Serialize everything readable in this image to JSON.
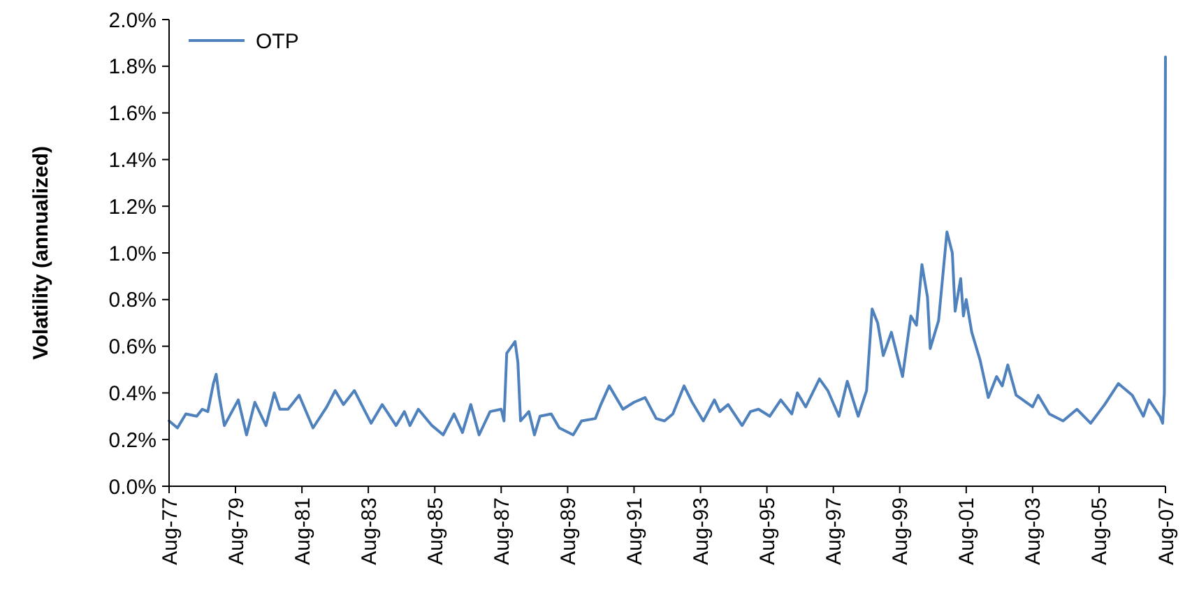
{
  "chart_data": {
    "type": "line",
    "ylabel": "Volatility (annualized)",
    "legend": "top left",
    "grid": false,
    "marker": "none",
    "line_style": "solid",
    "xlim": [
      "1977-08",
      "2007-08"
    ],
    "xticks": [
      {
        "value": "1977-08",
        "label": "Aug-77"
      },
      {
        "value": "1979-08",
        "label": "Aug-79"
      },
      {
        "value": "1981-08",
        "label": "Aug-81"
      },
      {
        "value": "1983-08",
        "label": "Aug-83"
      },
      {
        "value": "1985-08",
        "label": "Aug-85"
      },
      {
        "value": "1987-08",
        "label": "Aug-87"
      },
      {
        "value": "1989-08",
        "label": "Aug-89"
      },
      {
        "value": "1991-08",
        "label": "Aug-91"
      },
      {
        "value": "1993-08",
        "label": "Aug-93"
      },
      {
        "value": "1995-08",
        "label": "Aug-95"
      },
      {
        "value": "1997-08",
        "label": "Aug-97"
      },
      {
        "value": "1999-08",
        "label": "Aug-99"
      },
      {
        "value": "2001-08",
        "label": "Aug-01"
      },
      {
        "value": "2003-08",
        "label": "Aug-03"
      },
      {
        "value": "2005-08",
        "label": "Aug-05"
      },
      {
        "value": "2007-08",
        "label": "Aug-07"
      }
    ],
    "ylim": [
      0,
      2.0
    ],
    "yticks": [
      {
        "value": 0,
        "label": "0.0%"
      },
      {
        "value": 0.2,
        "label": "0.2%"
      },
      {
        "value": 0.4,
        "label": "0.4%"
      },
      {
        "value": 0.6,
        "label": "0.6%"
      },
      {
        "value": 0.8,
        "label": "0.8%"
      },
      {
        "value": 1.0,
        "label": "1.0%"
      },
      {
        "value": 1.2,
        "label": "1.2%"
      },
      {
        "value": 1.4,
        "label": "1.4%"
      },
      {
        "value": 1.6,
        "label": "1.6%"
      },
      {
        "value": 1.8,
        "label": "1.8%"
      },
      {
        "value": 2.0,
        "label": "2.0%"
      }
    ],
    "x": [
      "1977-08",
      "1977-11",
      "1978-02",
      "1978-06",
      "1978-08",
      "1978-10",
      "1978-12",
      "1979-01",
      "1979-02",
      "1979-04",
      "1979-09",
      "1979-12",
      "1980-03",
      "1980-07",
      "1980-10",
      "1980-12",
      "1981-03",
      "1981-07",
      "1981-12",
      "1982-05",
      "1982-08",
      "1982-11",
      "1983-03",
      "1983-09",
      "1984-01",
      "1984-06",
      "1984-09",
      "1984-11",
      "1985-02",
      "1985-07",
      "1985-11",
      "1986-03",
      "1986-06",
      "1986-09",
      "1986-12",
      "1987-04",
      "1987-08",
      "1987-09",
      "1987-10",
      "1988-01",
      "1988-02",
      "1988-03",
      "1988-06",
      "1988-08",
      "1988-10",
      "1989-02",
      "1989-05",
      "1989-10",
      "1990-01",
      "1990-06",
      "1990-08",
      "1990-11",
      "1991-04",
      "1991-08",
      "1991-12",
      "1992-04",
      "1992-07",
      "1992-10",
      "1993-02",
      "1993-05",
      "1993-09",
      "1994-01",
      "1994-03",
      "1994-06",
      "1994-11",
      "1995-02",
      "1995-05",
      "1995-09",
      "1996-01",
      "1996-05",
      "1996-07",
      "1996-10",
      "1997-03",
      "1997-06",
      "1997-10",
      "1998-01",
      "1998-05",
      "1998-08",
      "1998-10",
      "1998-12",
      "1999-02",
      "1999-05",
      "1999-09",
      "1999-12",
      "2000-02",
      "2000-04",
      "2000-06",
      "2000-07",
      "2000-10",
      "2001-01",
      "2001-03",
      "2001-04",
      "2001-06",
      "2001-07",
      "2001-08",
      "2001-10",
      "2002-01",
      "2002-04",
      "2002-07",
      "2002-09",
      "2002-11",
      "2003-02",
      "2003-08",
      "2003-10",
      "2004-02",
      "2004-07",
      "2004-12",
      "2005-05",
      "2005-10",
      "2006-03",
      "2006-08",
      "2006-12",
      "2007-02",
      "2007-06",
      "2007-07",
      "2007-07-20",
      "2007-08"
    ],
    "series": [
      {
        "name": "OTP",
        "color": "#4f81bd",
        "values": [
          0.28,
          0.25,
          0.31,
          0.3,
          0.33,
          0.32,
          0.44,
          0.48,
          0.39,
          0.26,
          0.37,
          0.22,
          0.36,
          0.26,
          0.4,
          0.33,
          0.33,
          0.39,
          0.25,
          0.34,
          0.41,
          0.35,
          0.41,
          0.27,
          0.35,
          0.26,
          0.32,
          0.26,
          0.33,
          0.26,
          0.22,
          0.31,
          0.23,
          0.35,
          0.22,
          0.32,
          0.33,
          0.28,
          0.57,
          0.62,
          0.53,
          0.28,
          0.32,
          0.22,
          0.3,
          0.31,
          0.25,
          0.22,
          0.28,
          0.29,
          0.35,
          0.43,
          0.33,
          0.36,
          0.38,
          0.29,
          0.28,
          0.31,
          0.43,
          0.36,
          0.28,
          0.37,
          0.32,
          0.35,
          0.26,
          0.32,
          0.33,
          0.3,
          0.37,
          0.31,
          0.4,
          0.34,
          0.46,
          0.41,
          0.3,
          0.45,
          0.3,
          0.41,
          0.76,
          0.7,
          0.56,
          0.66,
          0.47,
          0.73,
          0.69,
          0.95,
          0.81,
          0.59,
          0.71,
          1.09,
          1.0,
          0.75,
          0.89,
          0.73,
          0.8,
          0.66,
          0.54,
          0.38,
          0.47,
          0.43,
          0.52,
          0.39,
          0.34,
          0.39,
          0.31,
          0.28,
          0.33,
          0.27,
          0.35,
          0.44,
          0.39,
          0.3,
          0.37,
          0.3,
          0.27,
          0.4,
          1.84
        ]
      }
    ]
  }
}
